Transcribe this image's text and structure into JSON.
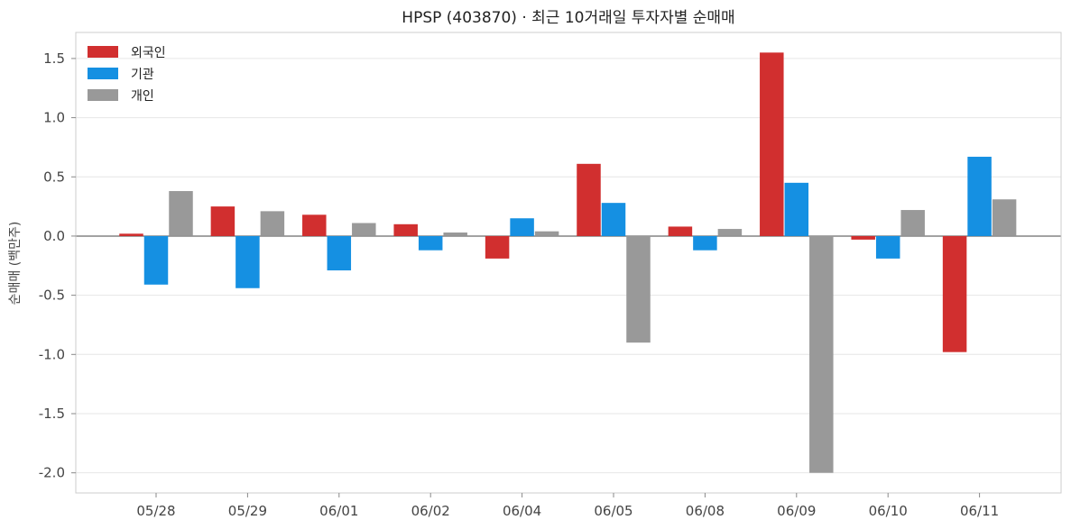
{
  "chart_data": {
    "type": "bar",
    "title": "HPSP (403870) · 최근 10거래일 투자자별 순매매",
    "xlabel": "",
    "ylabel": "순매매 (백만주)",
    "categories": [
      "05/28",
      "05/29",
      "06/01",
      "06/02",
      "06/04",
      "06/05",
      "06/08",
      "06/09",
      "06/10",
      "06/11"
    ],
    "series": [
      {
        "name": "외국인",
        "color": "#d12f2f",
        "values": [
          0.02,
          0.25,
          0.18,
          0.1,
          -0.19,
          0.61,
          0.08,
          1.55,
          -0.03,
          -0.98
        ]
      },
      {
        "name": "기관",
        "color": "#1590e2",
        "values": [
          -0.41,
          -0.44,
          -0.29,
          -0.12,
          0.15,
          0.28,
          -0.12,
          0.45,
          -0.19,
          0.67
        ]
      },
      {
        "name": "개인",
        "color": "#999999",
        "values": [
          0.38,
          0.21,
          0.11,
          0.03,
          0.04,
          -0.9,
          0.06,
          -2.0,
          0.22,
          0.31
        ]
      }
    ],
    "yticks": [
      -2.0,
      -1.5,
      -1.0,
      -0.5,
      0.0,
      0.5,
      1.0,
      1.5
    ],
    "ytick_labels": [
      "-2.0",
      "-1.5",
      "-1.0",
      "-0.5",
      "0.0",
      "0.5",
      "1.0",
      "1.5"
    ],
    "ylim": [
      -2.17,
      1.72
    ],
    "grid": "horizontal",
    "legend_position": "top-left",
    "zero_line": true
  }
}
